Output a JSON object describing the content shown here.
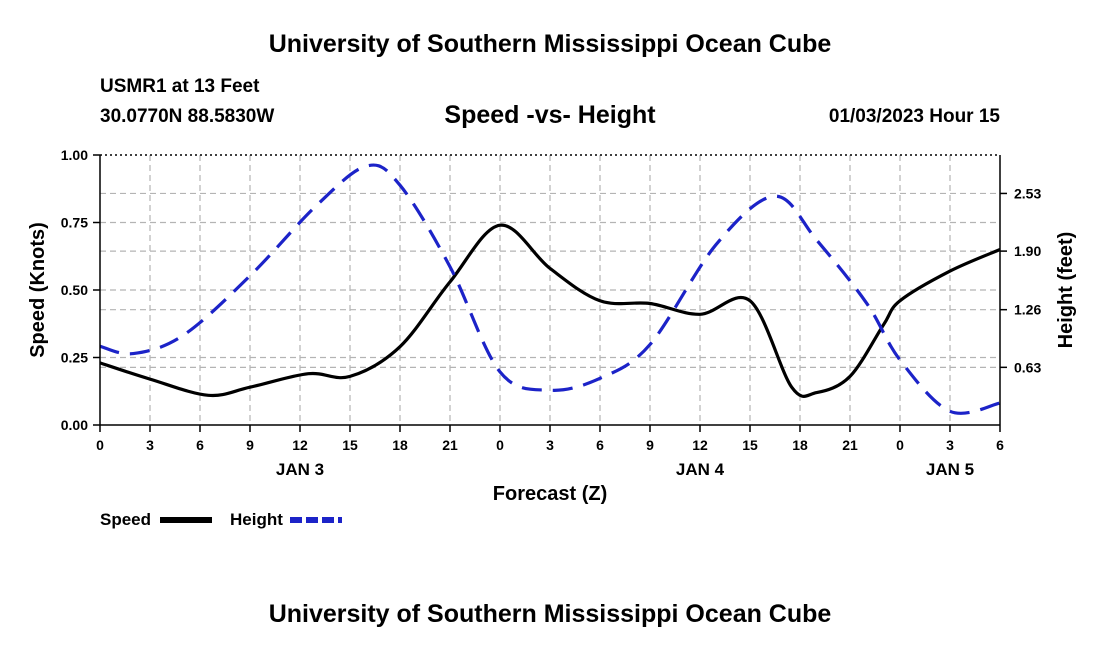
{
  "header": {
    "title": "University of Southern Mississippi Ocean Cube",
    "station": "USMR1 at 13 Feet",
    "coordinates": "30.0770N  88.5830W",
    "subtitle": "Speed -vs- Height",
    "datetime": "01/03/2023 Hour 15"
  },
  "footer": {
    "title": "University of Southern Mississippi Ocean Cube"
  },
  "chart_data": {
    "type": "line",
    "title": "Speed -vs- Height",
    "xlabel": "Forecast (Z)",
    "ylabel": "Speed (Knots)",
    "y2label": "Height (feet)",
    "xlim": [
      0,
      54
    ],
    "ylim": [
      0,
      1
    ],
    "y2lim": [
      0,
      2.95
    ],
    "grid": true,
    "x_ticks": [
      0,
      3,
      6,
      9,
      12,
      15,
      18,
      21,
      24,
      27,
      30,
      33,
      36,
      39,
      42,
      45,
      48,
      51,
      54
    ],
    "x_tick_labels": [
      "0",
      "3",
      "6",
      "9",
      "12",
      "15",
      "18",
      "21",
      "0",
      "3",
      "6",
      "9",
      "12",
      "15",
      "18",
      "21",
      "0",
      "3",
      "6"
    ],
    "y_ticks": [
      0,
      0.25,
      0.5,
      0.75,
      1.0
    ],
    "y_tick_labels": [
      "0.00",
      "0.25",
      "0.50",
      "0.75",
      "1.00"
    ],
    "y2_ticks": [
      0.63,
      1.26,
      1.9,
      2.53
    ],
    "y2_tick_labels": [
      "0.63",
      "1.26",
      "1.90",
      "2.53"
    ],
    "day_labels": [
      {
        "x": 12,
        "label": "JAN 3"
      },
      {
        "x": 36,
        "label": "JAN 4"
      },
      {
        "x": 51,
        "label": "JAN 5"
      }
    ],
    "series": [
      {
        "name": "Speed",
        "axis": "left",
        "color": "#000000",
        "style": "solid",
        "x": [
          0,
          3,
          6.5,
          9,
          12.5,
          15,
          18,
          21,
          24,
          27,
          30,
          33,
          36,
          39,
          41.5,
          43,
          45,
          47,
          48,
          51,
          54
        ],
        "values": [
          0.23,
          0.17,
          0.11,
          0.14,
          0.19,
          0.18,
          0.29,
          0.53,
          0.74,
          0.58,
          0.46,
          0.45,
          0.41,
          0.46,
          0.14,
          0.12,
          0.18,
          0.37,
          0.46,
          0.57,
          0.65
        ]
      },
      {
        "name": "Height",
        "axis": "right",
        "color": "#1c23c8",
        "style": "dashed",
        "x": [
          0,
          2,
          5,
          9,
          13,
          16,
          18,
          21,
          24,
          27,
          30,
          33,
          37,
          40.5,
          43,
          46,
          48,
          51,
          54
        ],
        "values": [
          0.86,
          0.78,
          0.98,
          1.63,
          2.4,
          2.83,
          2.62,
          1.73,
          0.58,
          0.38,
          0.51,
          0.88,
          1.98,
          2.5,
          2.02,
          1.33,
          0.71,
          0.15,
          0.24
        ]
      }
    ],
    "legend": {
      "placement": "bottom-left",
      "entries": [
        "Speed",
        "Height"
      ]
    }
  }
}
